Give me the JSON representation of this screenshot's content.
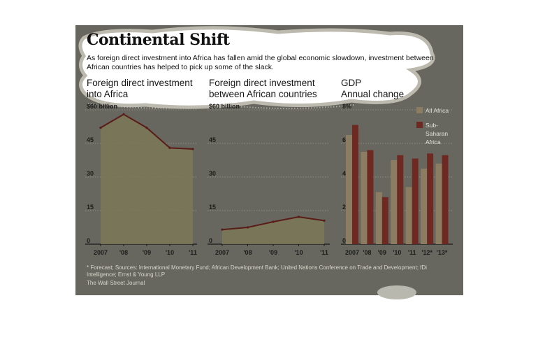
{
  "header": {
    "title": "Continental Shift",
    "intro": "As foreign direct investment into Africa has fallen amid the global economic slowdown, investment between African countries has helped to pick up some of the slack."
  },
  "colors": {
    "panel": "#67675f",
    "area_fill": "#7c7857",
    "line": "#5a1c18",
    "bar_all_africa": "#8c7c62",
    "bar_sub_saharan": "#6e2a22"
  },
  "chart_data": [
    {
      "type": "area",
      "title_lines": [
        "Foreign direct investment",
        "into Africa"
      ],
      "x": [
        "2007",
        "'08",
        "'09",
        "'10",
        "'11"
      ],
      "series": [
        {
          "values": [
            52,
            58,
            52,
            43,
            42.5
          ]
        }
      ],
      "ylim": [
        0,
        60
      ],
      "yticks": [
        0,
        15,
        30,
        45,
        60
      ],
      "ytick_labels": [
        "0",
        "15",
        "30",
        "45",
        "$60 billion"
      ],
      "grid": true
    },
    {
      "type": "area",
      "title_lines": [
        "Foreign direct investment",
        "between African countries"
      ],
      "x": [
        "2007",
        "'08",
        "'09",
        "'10",
        "'11"
      ],
      "series": [
        {
          "values": [
            6.5,
            7.5,
            10,
            12.2,
            10.5
          ]
        }
      ],
      "ylim": [
        0,
        60
      ],
      "yticks": [
        0,
        15,
        30,
        45,
        60
      ],
      "ytick_labels": [
        "0",
        "15",
        "30",
        "45",
        "$60 billion"
      ],
      "grid": true
    },
    {
      "type": "bar",
      "title_lines": [
        "GDP",
        "Annual change"
      ],
      "categories": [
        "2007",
        "'08",
        "'09",
        "'10",
        "'11",
        "'12*",
        "'13*"
      ],
      "series": [
        {
          "name": "All Africa",
          "values": [
            6.5,
            5.5,
            3.1,
            5.0,
            3.4,
            4.5,
            4.8
          ]
        },
        {
          "name": "Sub-Saharan Africa",
          "values": [
            7.1,
            5.6,
            2.8,
            5.3,
            5.1,
            5.4,
            5.3
          ]
        }
      ],
      "legend_lines": [
        [
          "All Africa"
        ],
        [
          "Sub-",
          "Saharan",
          "Africa"
        ]
      ],
      "ylim": [
        0,
        8
      ],
      "yticks": [
        0,
        2,
        4,
        6,
        8
      ],
      "ytick_labels": [
        "0",
        "2",
        "4",
        "6",
        "8%"
      ],
      "grid": true,
      "legend_position": "top-right"
    }
  ],
  "footer": {
    "note": "* Forecast; Sources: International Monetary Fund; African Development Bank; United Nations Conference on Trade and Development; fDi Intelligence; Ernst & Young LLP",
    "credit": "The Wall Street Journal"
  }
}
